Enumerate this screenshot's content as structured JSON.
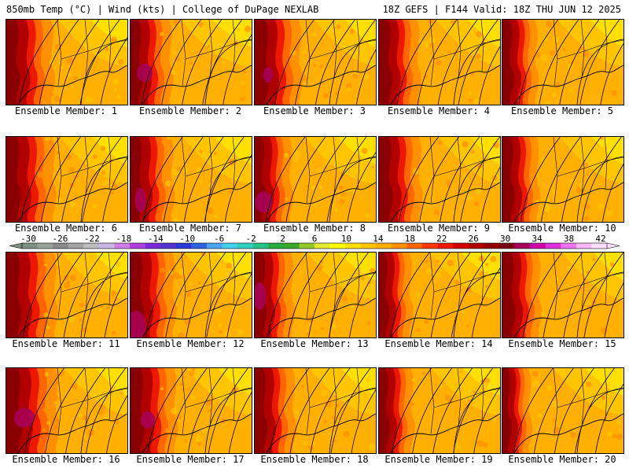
{
  "header": {
    "left": "850mb Temp (°C) | Wind (kts) | College of DuPage NEXLAB",
    "right": "18Z GEFS | F144 Valid: 18Z THU JUN 12 2025"
  },
  "panels": [
    {
      "label": "Ensemble Member: 1"
    },
    {
      "label": "Ensemble Member: 2"
    },
    {
      "label": "Ensemble Member: 3"
    },
    {
      "label": "Ensemble Member: 4"
    },
    {
      "label": "Ensemble Member: 5"
    },
    {
      "label": "Ensemble Member: 6"
    },
    {
      "label": "Ensemble Member: 7"
    },
    {
      "label": "Ensemble Member: 8"
    },
    {
      "label": "Ensemble Member: 9"
    },
    {
      "label": "Ensemble Member: 10"
    },
    {
      "label": "Ensemble Member: 11"
    },
    {
      "label": "Ensemble Member: 12"
    },
    {
      "label": "Ensemble Member: 13"
    },
    {
      "label": "Ensemble Member: 14"
    },
    {
      "label": "Ensemble Member: 15"
    },
    {
      "label": "Ensemble Member: 16"
    },
    {
      "label": "Ensemble Member: 17"
    },
    {
      "label": "Ensemble Member: 18"
    },
    {
      "label": "Ensemble Member: 19"
    },
    {
      "label": "Ensemble Member: 20"
    }
  ],
  "colorbar": {
    "tick_labels": [
      "-30",
      "-26",
      "-22",
      "-18",
      "-14",
      "-10",
      "-6",
      "-2",
      "2",
      "6",
      "10",
      "14",
      "18",
      "22",
      "26",
      "30",
      "34",
      "38",
      "42"
    ],
    "colors": [
      "#7f8f84",
      "#9aa39b",
      "#8a8a8a",
      "#a4a4a4",
      "#bdbdbd",
      "#c8b8e0",
      "#d07ee6",
      "#b13ee0",
      "#7a2bd8",
      "#5234d2",
      "#2b3ad6",
      "#2f63e3",
      "#4aa6f0",
      "#40d0ea",
      "#2fd2bd",
      "#27c08a",
      "#29ad3e",
      "#3aa82a",
      "#93c82a",
      "#e6eb30",
      "#ffff00",
      "#ffe000",
      "#ffc600",
      "#ffad00",
      "#ff9000",
      "#ff6600",
      "#ff3800",
      "#ee1800",
      "#d40000",
      "#b00000",
      "#920000",
      "#7a0010",
      "#a8005c",
      "#cc00a8",
      "#e030d8",
      "#f072f0",
      "#f8b8f8",
      "#ffe0ff"
    ]
  }
}
